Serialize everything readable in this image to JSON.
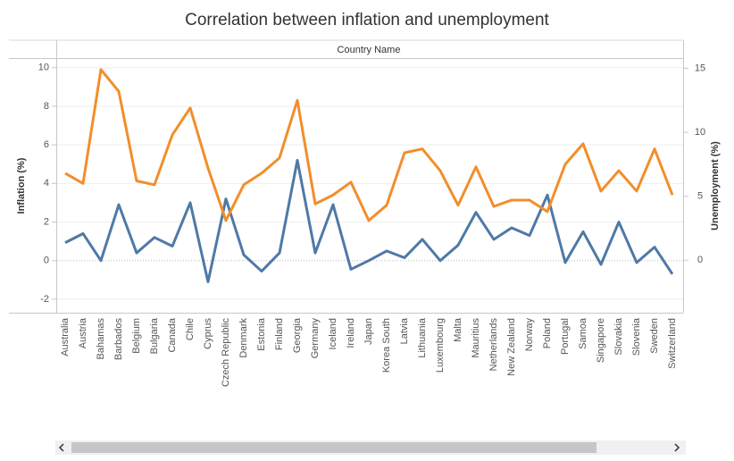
{
  "chart_data": {
    "type": "line",
    "title": "Correlation between inflation and unemployment",
    "x_header": "Country Name",
    "ylabel": "Inflation (%)",
    "y2label": "Unemployment (%)",
    "categories": [
      "Australia",
      "Austria",
      "Bahamas",
      "Barbados",
      "Belgium",
      "Bulgaria",
      "Canada",
      "Chile",
      "Cyprus",
      "Czech Republic",
      "Denmark",
      "Estonia",
      "Finland",
      "Georgia",
      "Germany",
      "Iceland",
      "Ireland",
      "Japan",
      "Korea South",
      "Latvia",
      "Lithuania",
      "Luxembourg",
      "Malta",
      "Mauritius",
      "Netherlands",
      "New Zealand",
      "Norway",
      "Poland",
      "Portugal",
      "Samoa",
      "Singapore",
      "Slovakia",
      "Slovenia",
      "Sweden",
      "Switzerland"
    ],
    "series": [
      {
        "name": "Inflation (%)",
        "color": "#4e79a7",
        "axis": "y",
        "values": [
          0.93,
          1.4,
          0,
          2.9,
          0.4,
          1.2,
          0.75,
          3.0,
          -1.1,
          3.2,
          0.3,
          -0.55,
          0.4,
          5.2,
          0.4,
          2.9,
          -0.45,
          0,
          0.5,
          0.15,
          1.1,
          0,
          0.8,
          2.5,
          1.1,
          1.7,
          1.3,
          3.4,
          -0.1,
          1.5,
          -0.2,
          2.0,
          -0.1,
          0.7,
          -0.7
        ]
      },
      {
        "name": "Unemployment (%)",
        "color": "#f28e2b",
        "axis": "y2",
        "values": [
          6.8,
          6.0,
          14.9,
          13.2,
          6.2,
          5.9,
          9.8,
          11.9,
          7.2,
          3.1,
          5.9,
          6.8,
          8.0,
          12.5,
          4.4,
          5.1,
          6.1,
          3.1,
          4.3,
          8.4,
          8.7,
          7.0,
          4.3,
          7.3,
          4.2,
          4.7,
          4.7,
          3.8,
          7.5,
          9.1,
          5.4,
          7.0,
          5.4,
          8.7,
          5.1
        ]
      }
    ],
    "ylim": [
      -2.7,
      10.5
    ],
    "yticks": [
      -2,
      0,
      2,
      4,
      6,
      8,
      10
    ],
    "y2lim": [
      -4.1,
      15.8
    ],
    "y2ticks": [
      0,
      5,
      10,
      15
    ],
    "grid": true
  }
}
